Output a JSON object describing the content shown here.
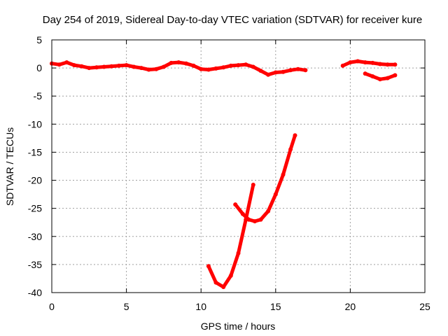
{
  "chart_data": {
    "type": "line",
    "title": "Day 254 of 2019, Sidereal Day-to-day VTEC variation (SDTVAR) for receiver kure",
    "xlabel": "GPS time / hours",
    "ylabel": "SDTVAR / TECUs",
    "xlim": [
      0,
      25
    ],
    "ylim": [
      -40,
      5
    ],
    "xticks": [
      0,
      5,
      10,
      15,
      20,
      25
    ],
    "yticks": [
      5,
      0,
      -5,
      -10,
      -15,
      -20,
      -25,
      -30,
      -35,
      -40
    ],
    "grid": true,
    "series_color": "#ff0000",
    "series": [
      {
        "x": [
          0.0,
          0.5,
          1.0,
          1.5,
          2.0,
          2.5,
          3.0,
          3.5,
          4.0,
          4.5,
          5.0,
          5.5,
          6.0,
          6.5,
          7.0,
          7.5,
          8.0,
          8.5,
          9.0,
          9.5,
          10.0,
          10.5,
          11.0,
          11.5,
          12.0,
          12.5,
          13.0,
          13.5,
          14.0,
          14.5,
          15.0,
          15.5,
          16.0,
          16.5,
          17.0
        ],
        "y": [
          0.8,
          0.6,
          1.0,
          0.5,
          0.3,
          0.0,
          0.1,
          0.2,
          0.3,
          0.4,
          0.5,
          0.2,
          0.0,
          -0.3,
          -0.2,
          0.2,
          0.9,
          1.0,
          0.8,
          0.4,
          -0.2,
          -0.3,
          -0.1,
          0.1,
          0.4,
          0.5,
          0.6,
          0.2,
          -0.5,
          -1.2,
          -0.8,
          -0.7,
          -0.4,
          -0.2,
          -0.4
        ]
      },
      {
        "x": [
          19.5,
          20.0,
          20.5,
          21.0,
          21.5,
          22.0,
          22.5,
          23.0
        ],
        "y": [
          0.4,
          1.0,
          1.2,
          1.0,
          0.9,
          0.7,
          0.6,
          0.6
        ]
      },
      {
        "x": [
          21.0,
          21.5,
          22.0,
          22.5,
          23.0
        ],
        "y": [
          -1.0,
          -1.5,
          -2.0,
          -1.8,
          -1.3
        ]
      },
      {
        "x": [
          10.5,
          11.0,
          11.5,
          12.0,
          12.5,
          13.0,
          13.5
        ],
        "y": [
          -35.3,
          -38.2,
          -39.0,
          -37.0,
          -33.0,
          -27.0,
          -20.8
        ]
      },
      {
        "x": [
          12.3,
          12.8,
          13.2,
          13.6,
          14.0,
          14.5,
          15.0,
          15.5,
          16.0,
          16.3
        ],
        "y": [
          -24.3,
          -26.0,
          -27.0,
          -27.3,
          -27.0,
          -25.5,
          -22.5,
          -19.0,
          -14.5,
          -12.0
        ]
      }
    ]
  }
}
